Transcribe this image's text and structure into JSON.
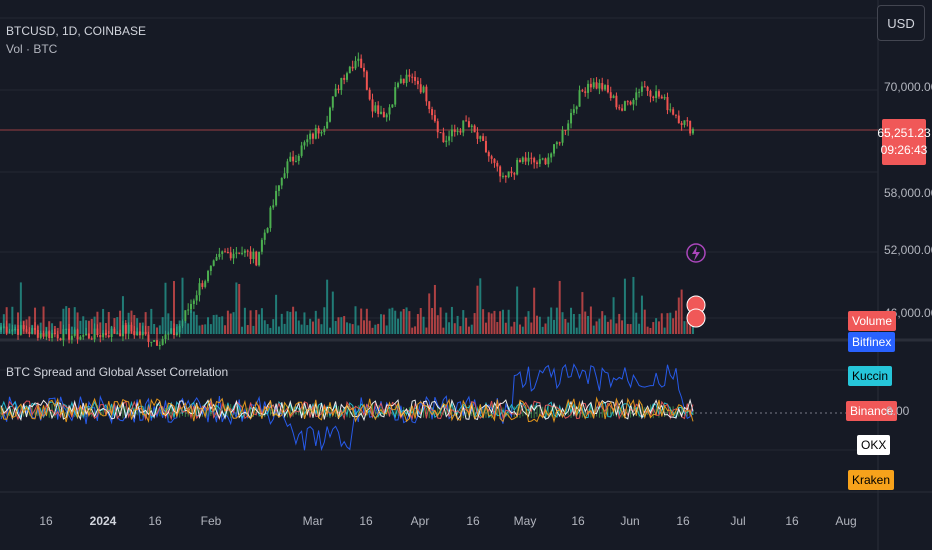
{
  "header": {
    "symbol_line": "BTCUSD, 1D, COINBASE",
    "volume_label": "Vol · BTC",
    "currency": "USD"
  },
  "price_axis": {
    "ticks": [
      "70,000.00",
      "52,000.00",
      "46,000.00"
    ],
    "partial_tick": "58,000.00",
    "current_price": "65,251.23",
    "countdown": "09:26:43"
  },
  "indicator": {
    "title": "BTC Spread and Global Asset Correlation",
    "zero_label": "0.00",
    "volume_tag": "Volume",
    "exchanges": [
      {
        "label": "Bitfinex",
        "color": "#2962ff"
      },
      {
        "label": "Kuccin",
        "color": "#26c6da"
      },
      {
        "label": "Binance",
        "color": "#f05858"
      },
      {
        "label": "OKX",
        "color": "#ffffff"
      },
      {
        "label": "Kraken",
        "color": "#f7a21b"
      }
    ]
  },
  "time_axis": {
    "ticks": [
      {
        "label": "16",
        "bold": false
      },
      {
        "label": "2024",
        "bold": true
      },
      {
        "label": "16",
        "bold": false
      },
      {
        "label": "Feb",
        "bold": false
      },
      {
        "label": "Mar",
        "bold": false
      },
      {
        "label": "16",
        "bold": false
      },
      {
        "label": "Apr",
        "bold": false
      },
      {
        "label": "16",
        "bold": false
      },
      {
        "label": "May",
        "bold": false
      },
      {
        "label": "16",
        "bold": false
      },
      {
        "label": "Jun",
        "bold": false
      },
      {
        "label": "16",
        "bold": false
      },
      {
        "label": "Jul",
        "bold": false
      },
      {
        "label": "16",
        "bold": false
      },
      {
        "label": "Aug",
        "bold": false
      }
    ]
  },
  "chart_data": {
    "type": "candlestick",
    "symbol": "BTCUSD",
    "interval": "1D",
    "exchange": "COINBASE",
    "colors": {
      "up": "#4caf50",
      "down": "#ef5350",
      "vol_up": "#26a69a",
      "vol_down": "#ef5350"
    },
    "y_range": [
      44000,
      78000
    ],
    "current_price": 65251.23,
    "price_control_points": [
      [
        0,
        43500
      ],
      [
        15,
        42800
      ],
      [
        30,
        42500
      ],
      [
        45,
        43200
      ],
      [
        55,
        42000
      ],
      [
        62,
        43000
      ],
      [
        70,
        48000
      ],
      [
        78,
        51500
      ],
      [
        84,
        52000
      ],
      [
        90,
        51000
      ],
      [
        100,
        61000
      ],
      [
        108,
        64000
      ],
      [
        114,
        66000
      ],
      [
        120,
        71000
      ],
      [
        126,
        73500
      ],
      [
        131,
        68000
      ],
      [
        136,
        67000
      ],
      [
        140,
        70500
      ],
      [
        146,
        71000
      ],
      [
        150,
        69000
      ],
      [
        156,
        64000
      ],
      [
        164,
        66000
      ],
      [
        170,
        63500
      ],
      [
        177,
        59500
      ],
      [
        184,
        62000
      ],
      [
        190,
        61500
      ],
      [
        195,
        63000
      ],
      [
        198,
        65000
      ],
      [
        203,
        68500
      ],
      [
        207,
        70500
      ],
      [
        212,
        70000
      ],
      [
        219,
        67500
      ],
      [
        226,
        70200
      ],
      [
        232,
        69000
      ],
      [
        238,
        67000
      ],
      [
        241,
        66000
      ],
      [
        244,
        65300
      ]
    ],
    "note": "Daily candles from mid-Dec 2023 to mid-Jun 2024; values estimated from axis."
  }
}
